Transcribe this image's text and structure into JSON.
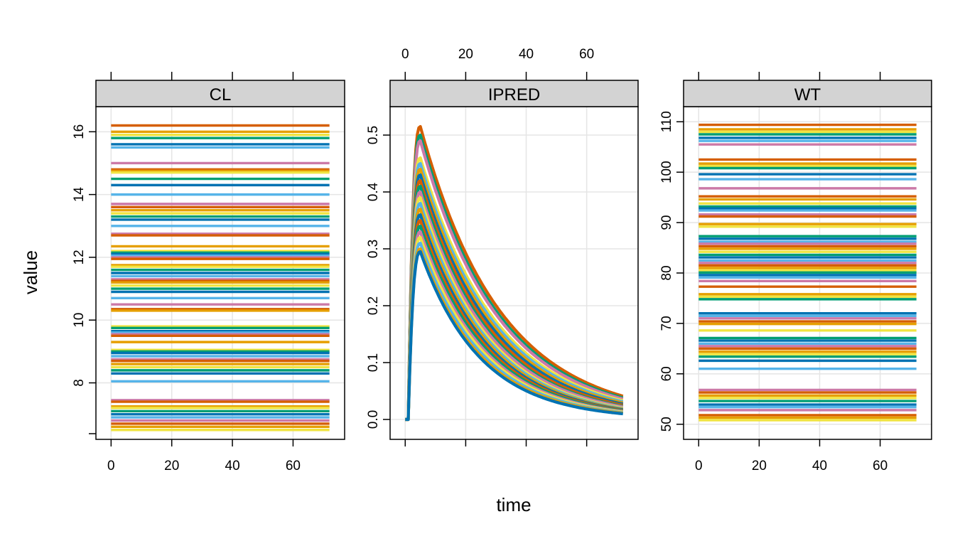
{
  "chart_data": {
    "type": "line",
    "layout": "lattice-3-panels",
    "xlabel": "time",
    "ylabel": "value",
    "x_range": [
      0,
      72
    ],
    "x_ticks": [
      0,
      20,
      40,
      60
    ],
    "grid": true,
    "legend": "none",
    "palette": [
      "#D55E00",
      "#E69F00",
      "#F0E442",
      "#009E73",
      "#0072B2",
      "#56B4E9",
      "#CC79A7"
    ],
    "panels": [
      {
        "strip": "CL",
        "x_axis_side": "bottom",
        "ylim": [
          6.2,
          16.8
        ],
        "y_ticks": [
          8,
          10,
          12,
          14,
          16
        ],
        "y_tick_labels": [
          "8",
          "10",
          "12",
          "14",
          "16"
        ],
        "line_values": [
          16.2,
          16.0,
          15.9,
          15.8,
          15.6,
          15.5,
          15.0,
          14.8,
          14.75,
          14.7,
          14.5,
          14.3,
          14.0,
          13.7,
          13.6,
          13.5,
          13.4,
          13.3,
          13.2,
          13.0,
          12.75,
          12.7,
          12.35,
          12.2,
          12.15,
          12.1,
          12.05,
          12.0,
          11.95,
          11.75,
          11.7,
          11.6,
          11.5,
          11.4,
          11.3,
          11.25,
          11.2,
          11.1,
          11.0,
          10.9,
          10.7,
          10.5,
          10.35,
          10.3,
          9.8,
          9.75,
          9.65,
          9.6,
          9.55,
          9.5,
          9.3,
          9.05,
          9.0,
          8.95,
          8.85,
          8.75,
          8.7,
          8.6,
          8.5,
          8.4,
          8.3,
          8.05,
          7.45,
          7.4,
          7.25,
          7.2,
          7.1,
          7.0,
          6.9,
          6.8,
          6.7,
          6.6,
          6.5
        ]
      },
      {
        "strip": "IPRED",
        "x_axis_side": "top",
        "ylim": [
          -0.035,
          0.55
        ],
        "y_ticks": [
          0.0,
          0.1,
          0.2,
          0.3,
          0.4,
          0.5
        ],
        "y_tick_labels": [
          "0.0",
          "0.1",
          "0.2",
          "0.3",
          "0.4",
          "0.5"
        ],
        "peak_time": 5,
        "curve_peaks": [
          0.515,
          0.5,
          0.49,
          0.46,
          0.45,
          0.44,
          0.43,
          0.42,
          0.41,
          0.4,
          0.39,
          0.38,
          0.37,
          0.36,
          0.35,
          0.34,
          0.33,
          0.32,
          0.31,
          0.3,
          0.295
        ],
        "curve_values_at_72h": [
          0.041,
          0.038,
          0.036,
          0.033,
          0.031,
          0.029,
          0.027,
          0.025,
          0.023,
          0.022,
          0.02,
          0.019,
          0.018,
          0.017,
          0.016,
          0.015,
          0.014,
          0.013,
          0.012,
          0.011,
          0.01
        ]
      },
      {
        "strip": "WT",
        "x_axis_side": "bottom",
        "ylim": [
          47,
          113
        ],
        "y_ticks": [
          50,
          60,
          70,
          80,
          90,
          100,
          110
        ],
        "y_tick_labels": [
          "50",
          "60",
          "70",
          "80",
          "90",
          "100",
          "110"
        ],
        "line_values": [
          109.4,
          108.5,
          108.0,
          107.5,
          106.8,
          106.2,
          105.5,
          102.5,
          101.7,
          101.2,
          100.8,
          99.6,
          98.6,
          96.8,
          95.2,
          94.6,
          93.8,
          93.2,
          92.8,
          92.4,
          91.6,
          91.2,
          89.7,
          89.2,
          87.3,
          86.8,
          86.2,
          85.8,
          85.3,
          84.8,
          84.2,
          83.6,
          83.1,
          82.5,
          82.0,
          81.5,
          81.0,
          80.5,
          80.1,
          79.6,
          79.1,
          78.4,
          77.3,
          75.8,
          75.3,
          74.8,
          72.0,
          71.5,
          71.0,
          70.4,
          69.9,
          68.6,
          67.1,
          66.6,
          66.0,
          65.5,
          65.0,
          64.4,
          63.9,
          63.4,
          62.6,
          61.0,
          56.8,
          56.3,
          55.7,
          55.2,
          54.6,
          53.9,
          53.4,
          52.8,
          51.8,
          51.3,
          50.8
        ]
      }
    ]
  }
}
